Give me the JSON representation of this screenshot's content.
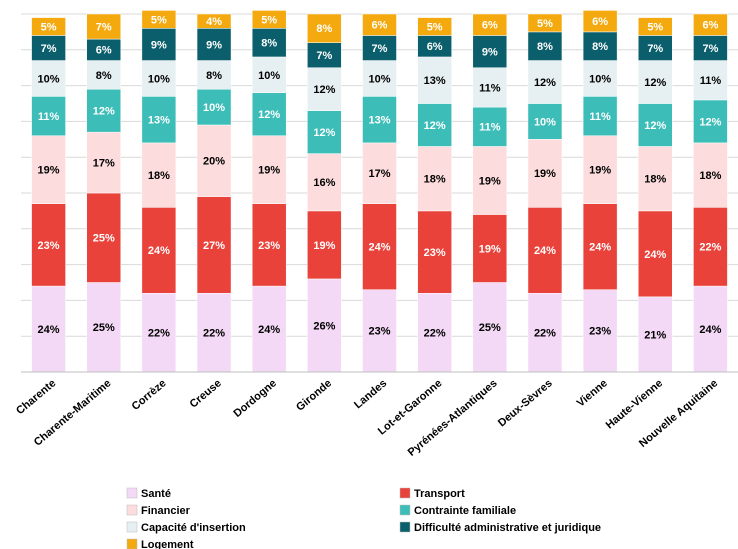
{
  "chart_data": {
    "type": "stacked_bar",
    "categories": [
      "Charente",
      "Charente-Maritime",
      "Corrèze",
      "Creuse",
      "Dordogne",
      "Gironde",
      "Landes",
      "Lot-et-Garonne",
      "Pyrénées-Atlantiques",
      "Deux-Sèvres",
      "Vienne",
      "Haute-Vienne",
      "Nouvelle Aquitaine"
    ],
    "series": [
      {
        "name": "Santé",
        "color": "#f3d9f5",
        "label_color": "#000000",
        "values": [
          24,
          25,
          22,
          22,
          24,
          26,
          23,
          22,
          25,
          22,
          23,
          21,
          24
        ],
        "value_labels": [
          "24%",
          "25%",
          "22%",
          "22%",
          "24%",
          "26%",
          "23%",
          "22%",
          "25%",
          "22%",
          "23%",
          "21%",
          "24%"
        ]
      },
      {
        "name": "Transport",
        "color": "#e8423a",
        "label_color": "#ffffff",
        "values": [
          23,
          25,
          24,
          27,
          23,
          19,
          24,
          23,
          19,
          24,
          24,
          24,
          22
        ],
        "value_labels": [
          "23%",
          "25%",
          "24%",
          "27%",
          "23%",
          "19%",
          "24%",
          "23%",
          "19%",
          "24%",
          "24%",
          "24%",
          "22%"
        ]
      },
      {
        "name": "Financier",
        "color": "#fcdcdc",
        "label_color": "#000000",
        "values": [
          19,
          17,
          18,
          20,
          19,
          16,
          17,
          18,
          19,
          19,
          19,
          18,
          18
        ],
        "value_labels": [
          "19%",
          "17%",
          "18%",
          "20%",
          "19%",
          "16%",
          "17%",
          "18%",
          "19%",
          "19%",
          "19%",
          "18%",
          "18%"
        ]
      },
      {
        "name": "Contrainte familiale",
        "color": "#3dbdb8",
        "label_color": "#ffffff",
        "values": [
          11,
          12,
          13,
          10,
          12,
          12,
          13,
          12,
          11,
          10,
          11,
          12,
          12
        ],
        "value_labels": [
          "11%",
          "12%",
          "13%",
          "10%",
          "12%",
          "12%",
          "13%",
          "12%",
          "11%",
          "10%",
          "11%",
          "12%",
          "12%"
        ]
      },
      {
        "name": "Capacité d'insertion",
        "color": "#e6eff1",
        "label_color": "#000000",
        "values": [
          10,
          8,
          10,
          8,
          10,
          12,
          10,
          13,
          11,
          12,
          10,
          12,
          11
        ],
        "value_labels": [
          "10%",
          "8%",
          "10%",
          "8%",
          "10%",
          "12%",
          "10%",
          "13%",
          "11%",
          "12%",
          "10%",
          "12%",
          "11%"
        ]
      },
      {
        "name": "Difficulté administrative et juridique",
        "color": "#0b5e6b",
        "label_color": "#ffffff",
        "values": [
          7,
          6,
          9,
          9,
          8,
          7,
          7,
          6,
          9,
          8,
          8,
          7,
          7
        ],
        "value_labels": [
          "7%",
          "6%",
          "9%",
          "9%",
          "8%",
          "7%",
          "7%",
          "6%",
          "9%",
          "8%",
          "8%",
          "7%",
          "7%"
        ]
      },
      {
        "name": "Logement",
        "color": "#f4a90e",
        "label_color": "#ffffff",
        "values": [
          5,
          7,
          5,
          4,
          5,
          8,
          6,
          5,
          6,
          5,
          6,
          5,
          6
        ],
        "value_labels": [
          "5%",
          "7%",
          "5%",
          "4%",
          "5%",
          "8%",
          "6%",
          "5%",
          "6%",
          "5%",
          "6%",
          "5%",
          "6%"
        ]
      }
    ],
    "ylim": [
      0,
      100
    ],
    "yticks": [
      0,
      10,
      20,
      30,
      40,
      50,
      60,
      70,
      80,
      90,
      100
    ],
    "grid": true
  }
}
